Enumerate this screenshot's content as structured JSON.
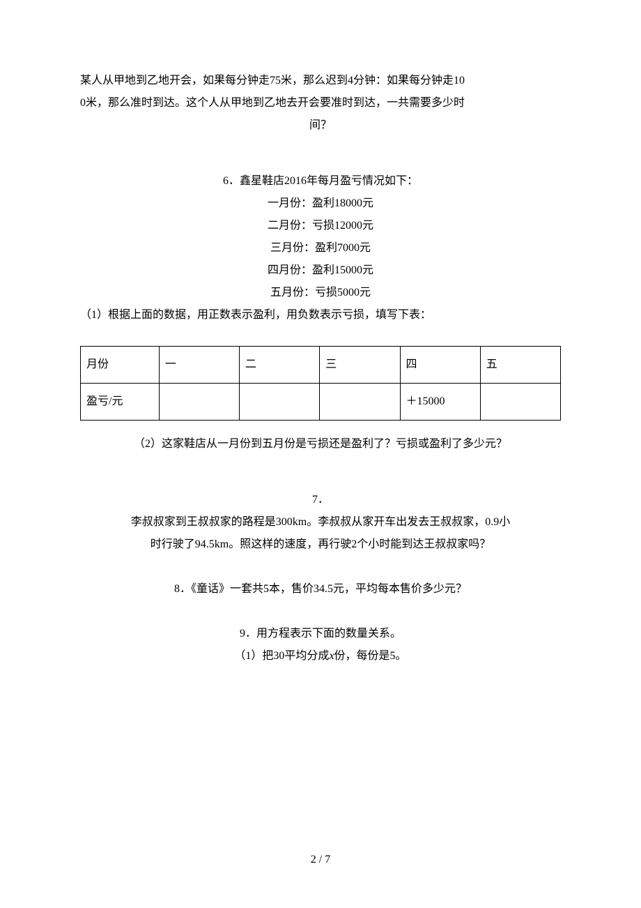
{
  "page": {
    "number": "2 / 7",
    "background_color": "#ffffff",
    "text_color": "#000000",
    "font_size_pt": 12
  },
  "q5_continuation": {
    "line1": "某人从甲地到乙地开会，如果每分钟走75米，那么迟到4分钟：如果每分钟走10",
    "line2": "0米，那么准时到达。这个人从甲地到乙地去开会要准时到达，一共需要多少时",
    "line3": "间？"
  },
  "q6": {
    "title": "6．鑫星鞋店2016年每月盈亏情况如下：",
    "months_list": [
      "一月份：盈利18000元",
      "二月份：亏损12000元",
      "三月份：盈利7000元",
      "四月份：盈利15000元",
      "五月份：亏损5000元"
    ],
    "sub1": "（1）根据上面的数据，用正数表示盈利，用负数表示亏损，填写下表：",
    "table": {
      "header_label": "月份",
      "columns": [
        "一",
        "二",
        "三",
        "四",
        "五"
      ],
      "row_label": "盈亏/元",
      "values": [
        "",
        "",
        "",
        "＋15000",
        ""
      ],
      "border_color": "#000000"
    },
    "sub2": "（2）这家鞋店从一月份到五月份是亏损还是盈利了？亏损或盈利了多少元？"
  },
  "q7": {
    "number": "7．",
    "line1": "李叔叔家到王叔叔家的路程是300km。李叔叔从家开车出发去王叔叔家，0.9小",
    "line2": "时行驶了94.5km。照这样的速度，再行驶2个小时能到达王叔叔家吗？"
  },
  "q8": {
    "text": "8．《童话》一套共5本，售价34.5元，平均每本售价多少元？"
  },
  "q9": {
    "title": "9．用方程表示下面的数量关系。",
    "sub1_prefix": "（1）把30平均分成",
    "sub1_var": "x",
    "sub1_suffix": "份，每份是5。"
  }
}
